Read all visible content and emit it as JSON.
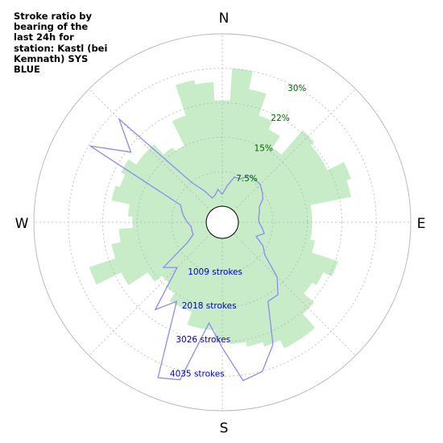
{
  "title": "Stroke ratio by bearing of the last 24h for station: Kastl (bei Kemnath) SYS BLUE",
  "colors": {
    "bars": "#c8ebc8",
    "line": "#8c8cf0",
    "grid": "#b4b4b4",
    "ratio_labels": "#006400",
    "stroke_labels": "#0000cd"
  },
  "chart_data": {
    "type": "bar",
    "projection": "polar",
    "title": "Stroke ratio by bearing of the last 24h for station: Kastl (bei Kemnath) SYS BLUE",
    "directions": [
      "N",
      "E",
      "S",
      "W"
    ],
    "bin_width_deg": 7.5,
    "ratio_ticks": [
      "7.5%",
      "15%",
      "22%",
      "30%"
    ],
    "ratio_tick_values": [
      7.5,
      15,
      22.5,
      30
    ],
    "ratio_max": 37.5,
    "stroke_ticks": [
      "1009 strokes",
      "2018 strokes",
      "3026 strokes",
      "4035 strokes"
    ],
    "stroke_tick_values": [
      1009,
      2018,
      3026,
      4035
    ],
    "stroke_max": 5044,
    "grid": true,
    "series": [
      {
        "type": "bar",
        "unit": "%",
        "bearings": [
          0,
          7.5,
          15,
          22.5,
          30,
          37.5,
          45,
          52.5,
          60,
          67.5,
          75,
          82.5,
          90,
          97.5,
          105,
          112.5,
          120,
          127.5,
          135,
          142.5,
          150,
          157.5,
          165,
          172.5,
          180,
          187.5,
          195,
          202.5,
          210,
          217.5,
          225,
          232.5,
          240,
          247.5,
          255,
          262.5,
          270,
          277.5,
          285,
          292.5,
          300,
          307.5,
          315,
          322.5,
          330,
          337.5,
          345,
          352.5
        ],
        "values": [
          23,
          30,
          26,
          21,
          19,
          16,
          23,
          22,
          22,
          26,
          25,
          16,
          16,
          16,
          17,
          23,
          21,
          20,
          23,
          27,
          27,
          25,
          24,
          23,
          22,
          20,
          20,
          17,
          17,
          15,
          14,
          16,
          21,
          27,
          21,
          19,
          16,
          17,
          21,
          20,
          21,
          19,
          19,
          16,
          15,
          21,
          28,
          27
        ]
      },
      {
        "type": "line",
        "unit": "strokes",
        "bearings": [
          0,
          7.5,
          15,
          22.5,
          30,
          37.5,
          45,
          52.5,
          60,
          67.5,
          75,
          82.5,
          90,
          97.5,
          105,
          112.5,
          120,
          127.5,
          135,
          142.5,
          150,
          157.5,
          165,
          172.5,
          180,
          187.5,
          195,
          202.5,
          210,
          217.5,
          225,
          232.5,
          240,
          247.5,
          255,
          262.5,
          270,
          277.5,
          285,
          292.5,
          300,
          307.5,
          315,
          322.5,
          330,
          337.5,
          345,
          352.5
        ],
        "values": [
          350,
          600,
          900,
          900,
          1100,
          1100,
          1100,
          1000,
          900,
          700,
          650,
          600,
          600,
          700,
          800,
          600,
          900,
          1100,
          1800,
          2200,
          2200,
          3400,
          4050,
          4200,
          3200,
          2500,
          4300,
          4450,
          2200,
          2750,
          1400,
          1700,
          700,
          450,
          450,
          450,
          550,
          650,
          750,
          850,
          4000,
          2900,
          3800,
          1000,
          600,
          300,
          350,
          500
        ]
      }
    ]
  }
}
